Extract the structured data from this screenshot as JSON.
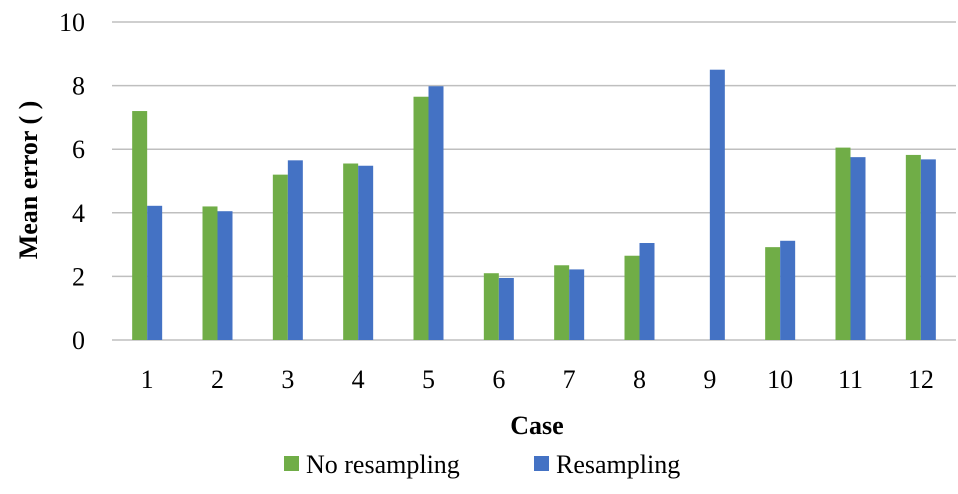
{
  "chart_data": {
    "type": "bar",
    "categories": [
      "1",
      "2",
      "3",
      "4",
      "5",
      "6",
      "7",
      "8",
      "9",
      "10",
      "11",
      "12"
    ],
    "series": [
      {
        "name": "No resampling",
        "color": "#70ad47",
        "values": [
          7.2,
          4.2,
          5.2,
          5.55,
          7.65,
          2.1,
          2.35,
          2.65,
          null,
          2.92,
          6.05,
          5.82
        ]
      },
      {
        "name": "Resampling",
        "color": "#4472c4",
        "values": [
          4.22,
          4.05,
          5.65,
          5.48,
          7.98,
          1.95,
          2.22,
          3.05,
          8.5,
          3.12,
          5.75,
          5.68
        ]
      }
    ],
    "xlabel": "Case",
    "ylabel": "Mean error (      )",
    "ylim": [
      0,
      10
    ],
    "yticks": [
      "0",
      "2",
      "4",
      "6",
      "8",
      "10"
    ],
    "grid": true,
    "legend_position": "bottom"
  }
}
